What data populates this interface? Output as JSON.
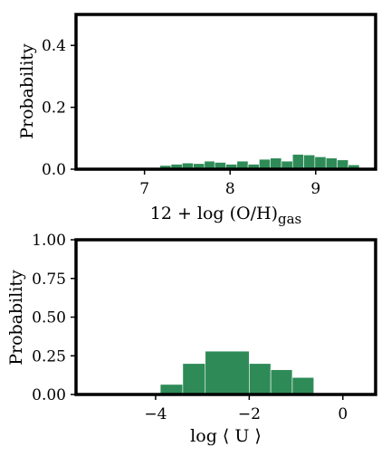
{
  "chart_data": [
    {
      "type": "bar",
      "xlabel": "12 + log (O/H)",
      "xlabel_sub": "gas",
      "ylabel": "Probability",
      "xlim": [
        6.2,
        9.7
      ],
      "ylim": [
        0.0,
        0.5
      ],
      "xticks": [
        {
          "value": 7,
          "label": "7"
        },
        {
          "value": 8,
          "label": "8"
        },
        {
          "value": 9,
          "label": "9"
        }
      ],
      "yticks": [
        {
          "value": 0.0,
          "label": "0.0"
        },
        {
          "value": 0.2,
          "label": "0.2"
        },
        {
          "value": 0.4,
          "label": "0.4"
        }
      ],
      "bar_color": "#2e8b57",
      "bins": [
        [
          7.18,
          7.31,
          0.012
        ],
        [
          7.31,
          7.44,
          0.016
        ],
        [
          7.44,
          7.57,
          0.02
        ],
        [
          7.57,
          7.7,
          0.018
        ],
        [
          7.7,
          7.82,
          0.026
        ],
        [
          7.82,
          7.95,
          0.022
        ],
        [
          7.95,
          8.08,
          0.016
        ],
        [
          8.08,
          8.21,
          0.026
        ],
        [
          8.21,
          8.34,
          0.016
        ],
        [
          8.34,
          8.47,
          0.032
        ],
        [
          8.47,
          8.6,
          0.036
        ],
        [
          8.6,
          8.73,
          0.026
        ],
        [
          8.73,
          8.86,
          0.048
        ],
        [
          8.86,
          8.99,
          0.046
        ],
        [
          8.99,
          9.12,
          0.04
        ],
        [
          9.12,
          9.25,
          0.036
        ],
        [
          9.25,
          9.38,
          0.03
        ],
        [
          9.38,
          9.51,
          0.014
        ],
        [
          9.51,
          9.64,
          0.004
        ]
      ]
    },
    {
      "type": "bar",
      "xlabel": "log ⟨ U ⟩",
      "ylabel": "Probability",
      "xlim": [
        -5.7,
        0.7
      ],
      "ylim": [
        0.0,
        1.0
      ],
      "xticks": [
        {
          "value": -4,
          "label": "−4"
        },
        {
          "value": -2,
          "label": "−2"
        },
        {
          "value": 0,
          "label": "0"
        }
      ],
      "yticks": [
        {
          "value": 0.0,
          "label": "0.00"
        },
        {
          "value": 0.25,
          "label": "0.25"
        },
        {
          "value": 0.5,
          "label": "0.50"
        },
        {
          "value": 0.75,
          "label": "0.75"
        },
        {
          "value": 1.0,
          "label": "1.00"
        }
      ],
      "bar_color": "#2e8b57",
      "bins": [
        [
          -3.9,
          -3.42,
          0.065
        ],
        [
          -3.42,
          -2.94,
          0.2
        ],
        [
          -2.94,
          -2.0,
          0.28
        ],
        [
          -2.0,
          -1.54,
          0.2
        ],
        [
          -1.54,
          -1.08,
          0.16
        ],
        [
          -1.08,
          -0.62,
          0.11
        ]
      ]
    }
  ]
}
